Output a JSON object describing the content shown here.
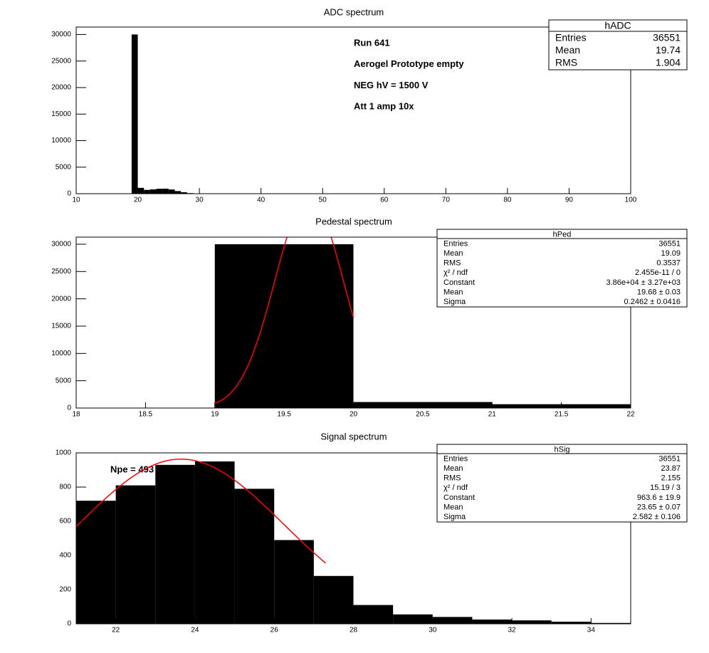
{
  "chart_data": [
    {
      "type": "histogram",
      "title": "ADC spectrum",
      "bins": [
        19,
        20,
        21,
        22,
        23,
        24,
        25,
        26,
        27,
        28,
        29,
        30,
        31,
        32,
        33,
        34,
        35
      ],
      "values": [
        30000,
        1100,
        720,
        810,
        930,
        950,
        790,
        490,
        280,
        110,
        55,
        40,
        25,
        20,
        12,
        5
      ],
      "color": "#000000",
      "xlim": [
        10,
        100
      ],
      "xticks": [
        10,
        20,
        30,
        40,
        50,
        60,
        70,
        80,
        90,
        100
      ],
      "ylim": [
        0,
        31400
      ],
      "yticks": [
        0,
        5000,
        10000,
        15000,
        20000,
        25000,
        30000
      ],
      "grid": false,
      "annotations": [
        "Run  641",
        "Aerogel Prototype empty",
        "NEG hV = 1500 V",
        "Att 1 amp 10x"
      ],
      "stats": {
        "title": "hADC",
        "rows": [
          [
            "Entries",
            "36551"
          ],
          [
            "Mean",
            "19.74"
          ],
          [
            "RMS",
            "1.904"
          ]
        ]
      }
    },
    {
      "type": "histogram",
      "title": "Pedestal spectrum",
      "bins": [
        19,
        20,
        21,
        22
      ],
      "values": [
        30000,
        1100,
        700
      ],
      "color": "#000000",
      "xlim": [
        18,
        22
      ],
      "xticks": [
        18,
        18.5,
        19,
        19.5,
        20,
        20.5,
        21,
        21.5,
        22
      ],
      "ylim": [
        0,
        31300
      ],
      "yticks": [
        0,
        5000,
        10000,
        15000,
        20000,
        25000,
        30000
      ],
      "grid": false,
      "fit": {
        "constant": 38600,
        "mean": 19.68,
        "sigma": 0.2462,
        "range": [
          19,
          20
        ],
        "color": "#ff0000"
      },
      "stats": {
        "title": "hPed",
        "rows": [
          [
            "Entries",
            "36551"
          ],
          [
            "Mean",
            "19.09"
          ],
          [
            "RMS",
            "0.3537"
          ],
          [
            "χ² / ndf",
            "2.455e-11 / 0"
          ],
          [
            "Constant",
            "3.86e+04 ± 3.27e+03"
          ],
          [
            "Mean",
            "19.68 ± 0.03"
          ],
          [
            "Sigma",
            "0.2462 ± 0.0416"
          ]
        ]
      }
    },
    {
      "type": "histogram",
      "title": "Signal spectrum",
      "bins": [
        21,
        22,
        23,
        24,
        25,
        26,
        27,
        28,
        29,
        30,
        31,
        32,
        33,
        34,
        35
      ],
      "values": [
        720,
        810,
        930,
        950,
        790,
        490,
        280,
        110,
        55,
        40,
        25,
        20,
        12,
        5
      ],
      "color": "#000000",
      "xlim": [
        21,
        35
      ],
      "xticks": [
        22,
        24,
        26,
        28,
        30,
        32,
        34
      ],
      "ylim": [
        0,
        1000
      ],
      "yticks": [
        0,
        200,
        400,
        600,
        800,
        1000
      ],
      "grid": false,
      "annotations": [
        "Npe = 493"
      ],
      "fit": {
        "constant": 963.6,
        "mean": 23.65,
        "sigma": 2.582,
        "range": [
          21,
          27.3
        ],
        "color": "#ff0000"
      },
      "stats": {
        "title": "hSig",
        "rows": [
          [
            "Entries",
            "36551"
          ],
          [
            "Mean",
            "23.87"
          ],
          [
            "RMS",
            "2.155"
          ],
          [
            "χ² / ndf",
            "15.19 / 3"
          ],
          [
            "Constant",
            "963.6 ± 19.9"
          ],
          [
            "Mean",
            "23.65 ± 0.07"
          ],
          [
            "Sigma",
            "2.582 ± 0.106"
          ]
        ]
      }
    }
  ]
}
